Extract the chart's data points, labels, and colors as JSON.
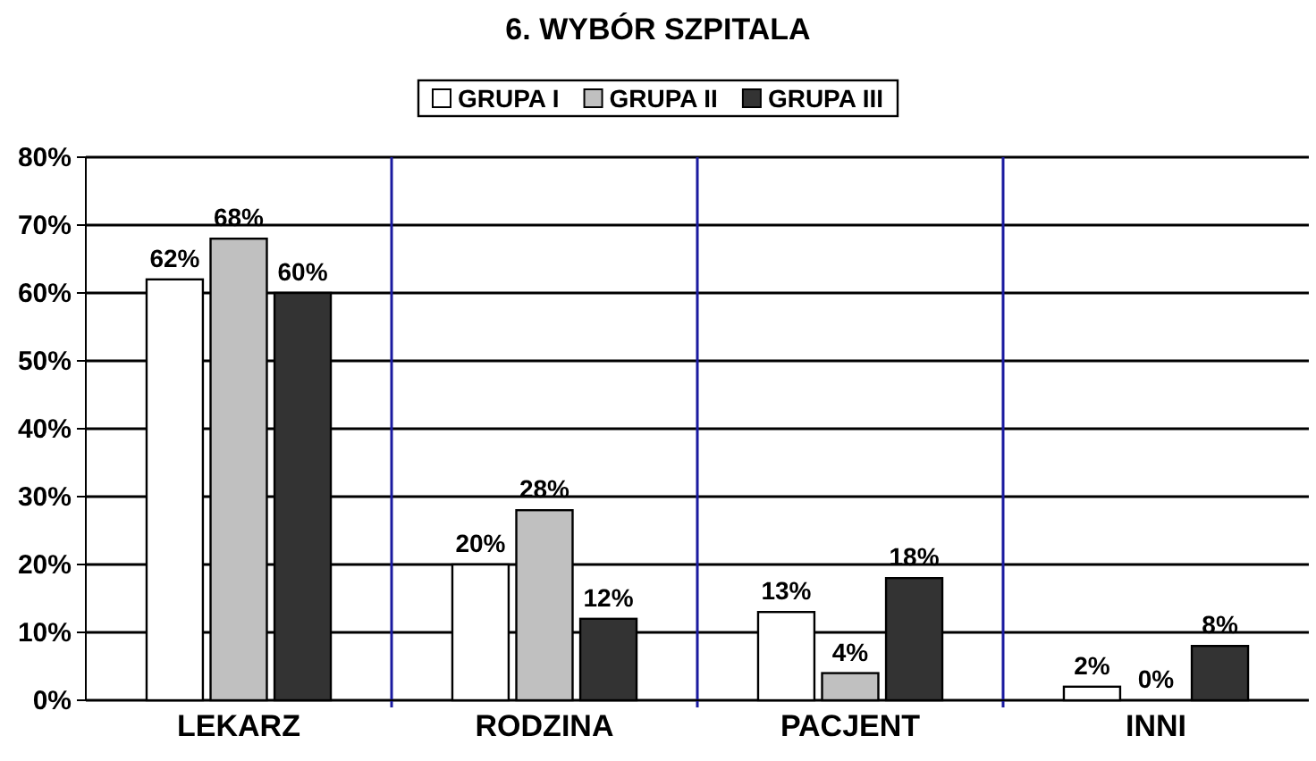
{
  "chart_data": {
    "type": "bar",
    "title": "6. WYBÓR SZPITALA",
    "categories": [
      "LEKARZ",
      "RODZINA",
      "PACJENT",
      "INNI"
    ],
    "series": [
      {
        "name": "GRUPA I",
        "color": "#ffffff",
        "values": [
          62,
          20,
          13,
          2
        ],
        "value_labels": [
          "62%",
          "20%",
          "13%",
          "2%"
        ]
      },
      {
        "name": "GRUPA II",
        "color": "#c0c0c0",
        "values": [
          68,
          28,
          4,
          0
        ],
        "value_labels": [
          "68%",
          "28%",
          "4%",
          "0%"
        ]
      },
      {
        "name": "GRUPA III",
        "color": "#333333",
        "values": [
          60,
          12,
          18,
          8
        ],
        "value_labels": [
          "60%",
          "12%",
          "18%",
          "8%"
        ]
      }
    ],
    "ylim": [
      0,
      80
    ],
    "yticks": [
      {
        "value": 0,
        "label": "0%"
      },
      {
        "value": 10,
        "label": "10%"
      },
      {
        "value": 20,
        "label": "20%"
      },
      {
        "value": 30,
        "label": "30%"
      },
      {
        "value": 40,
        "label": "40%"
      },
      {
        "value": 50,
        "label": "50%"
      },
      {
        "value": 60,
        "label": "60%"
      },
      {
        "value": 70,
        "label": "70%"
      },
      {
        "value": 80,
        "label": "80%"
      }
    ],
    "grid": "y",
    "legend": "top"
  }
}
